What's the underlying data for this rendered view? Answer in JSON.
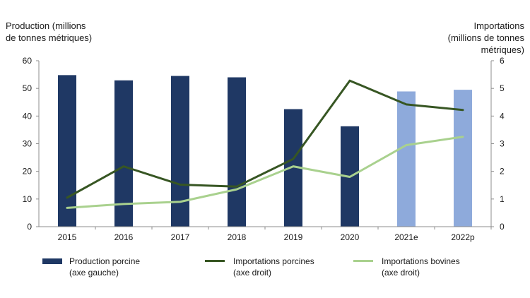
{
  "chart_data": {
    "type": "bar+line",
    "categories": [
      "2015",
      "2016",
      "2017",
      "2018",
      "2019",
      "2020",
      "2021e",
      "2022p"
    ],
    "left_axis": {
      "title_line1": "Production (millions",
      "title_line2": "de tonnes métriques)",
      "ylim": [
        0,
        60
      ],
      "ticks": [
        0,
        10,
        20,
        30,
        40,
        50,
        60
      ]
    },
    "right_axis": {
      "title_line1": "Importations",
      "title_line2": "(millions de tonnes",
      "title_line3": "métriques)",
      "ylim": [
        0,
        6
      ],
      "ticks": [
        0,
        1,
        2,
        3,
        4,
        5,
        6
      ]
    },
    "bars": {
      "name": "Production porcine",
      "axis": "left",
      "values": [
        54.8,
        52.9,
        54.5,
        54.0,
        42.5,
        36.3,
        48.9,
        49.5
      ],
      "colors": [
        "#1f3864",
        "#1f3864",
        "#1f3864",
        "#1f3864",
        "#1f3864",
        "#1f3864",
        "#8eaadb",
        "#8eaadb"
      ]
    },
    "series": [
      {
        "name": "Importations porcines",
        "axis": "right",
        "color": "#375623",
        "values": [
          1.05,
          2.18,
          1.52,
          1.45,
          2.45,
          5.28,
          4.42,
          4.22
        ]
      },
      {
        "name": "Importations bovines",
        "axis": "right",
        "color": "#a9d18e",
        "values": [
          0.68,
          0.82,
          0.9,
          1.35,
          2.18,
          1.8,
          2.95,
          3.25
        ]
      }
    ],
    "legend": [
      {
        "kind": "bar",
        "color": "#1f3864",
        "line1": "Production porcine",
        "line2": "(axe gauche)"
      },
      {
        "kind": "line",
        "color": "#375623",
        "line1": "Importations porcines",
        "line2": "(axe droit)"
      },
      {
        "kind": "line",
        "color": "#a9d18e",
        "line1": "Importations bovines",
        "line2": "(axe droit)"
      }
    ]
  }
}
